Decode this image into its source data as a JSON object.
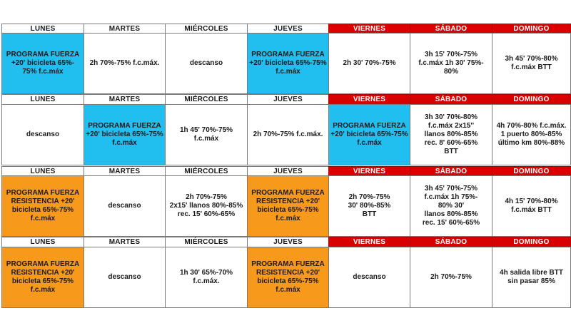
{
  "weeks": [
    {
      "headers": [
        "LUNES",
        "MARTES",
        "MIÉRCOLES",
        "JUEVES",
        "VIERNES",
        "SÁBADO",
        "DOMINGO"
      ],
      "cells": [
        {
          "text": "PROGRAMA FUERZA\n+20' bicicleta 65%-\n75% f.c.máx",
          "color": "#20bfef"
        },
        {
          "text": "2h 70%-75% f.c.máx.",
          "color": ""
        },
        {
          "text": "descanso",
          "color": ""
        },
        {
          "text": "PROGRAMA FUERZA\n+20' bicicleta 65%-75%\nf.c.máx",
          "color": "#20bfef"
        },
        {
          "text": "2h 30' 70%-75%",
          "color": ""
        },
        {
          "text": "3h 15' 70%-75%\nf.c.máx 1h 30' 75%-\n80%",
          "color": ""
        },
        {
          "text": "3h 45' 70%-80%\nf.c.máx   BTT",
          "color": ""
        }
      ]
    },
    {
      "headers": [
        "LUNES",
        "MARTES",
        "MIÉRCOLES",
        "JUEVES",
        "VIERNES",
        "SÁBADO",
        "DOMINGO"
      ],
      "cells": [
        {
          "text": "descanso",
          "color": ""
        },
        {
          "text": "PROGRAMA FUERZA\n+20' bicicleta 65%-75%\nf.c.máx",
          "color": "#20bfef"
        },
        {
          "text": "1h 45'  70%-75%\nf.c.máx",
          "color": ""
        },
        {
          "text": "2h 70%-75% f.c.máx.",
          "color": ""
        },
        {
          "text": "PROGRAMA FUERZA\n+20' bicicleta 65%-75%\nf.c.máx",
          "color": "#20bfef"
        },
        {
          "text": "3h 30' 70%-80%\nf.c.máx       2x15''\nllanos 80%-85%\nrec. 8' 60%-65%\nBTT",
          "color": ""
        },
        {
          "text": "4h  70%-80% f.c.máx.\n1 puerto 80%-85%\núltimo km 80%-88%",
          "color": ""
        }
      ]
    },
    {
      "headers": [
        "LUNES",
        "MARTES",
        "MIÉRCOLES",
        "JUEVES",
        "VIERNES",
        "SÁBADO",
        "DOMINGO"
      ],
      "cells": [
        {
          "text": "PROGRAMA FUERZA\nRESISTENCIA +20'\nbicicleta 65%-75%\nf.c.máx",
          "color": "#f79a1c"
        },
        {
          "text": "descanso",
          "color": ""
        },
        {
          "text": "2h  70%-75%\n2x15' llanos 80%-85%\nrec. 15' 60%-65%",
          "color": ""
        },
        {
          "text": "PROGRAMA FUERZA\nRESISTENCIA +20'\nbicicleta 65%-75%\nf.c.máx",
          "color": "#f79a1c"
        },
        {
          "text": "2h 70%-75%\n30' 80%-85%\nBTT",
          "color": ""
        },
        {
          "text": "3h 45' 70%-75%\nf.c.máx       1h 75%-\n80%               30'\nllanos 80%-85%\nrec. 15' 60%-65%",
          "color": ""
        },
        {
          "text": "4h 15' 70%-80%\nf.c.máx    BTT",
          "color": ""
        }
      ]
    },
    {
      "headers": [
        "LUNES",
        "MARTES",
        "MIÉRCOLES",
        "JUEVES",
        "VIERNES",
        "SÁBADO",
        "DOMINGO"
      ],
      "cells": [
        {
          "text": "PROGRAMA FUERZA\nRESISTENCIA +20'\nbicicleta 65%-75%\nf.c.máx",
          "color": "#f79a1c"
        },
        {
          "text": "descanso",
          "color": ""
        },
        {
          "text": "1h 30' 65%-70%\nf.c.máx.",
          "color": ""
        },
        {
          "text": "PROGRAMA FUERZA\nRESISTENCIA +20'\nbicicleta 65%-75%\nf.c.máx",
          "color": "#f79a1c"
        },
        {
          "text": "descanso",
          "color": ""
        },
        {
          "text": "2h 70%-75%",
          "color": ""
        },
        {
          "text": "4h salida libre BTT\nsin pasar 85%",
          "color": ""
        }
      ]
    }
  ]
}
